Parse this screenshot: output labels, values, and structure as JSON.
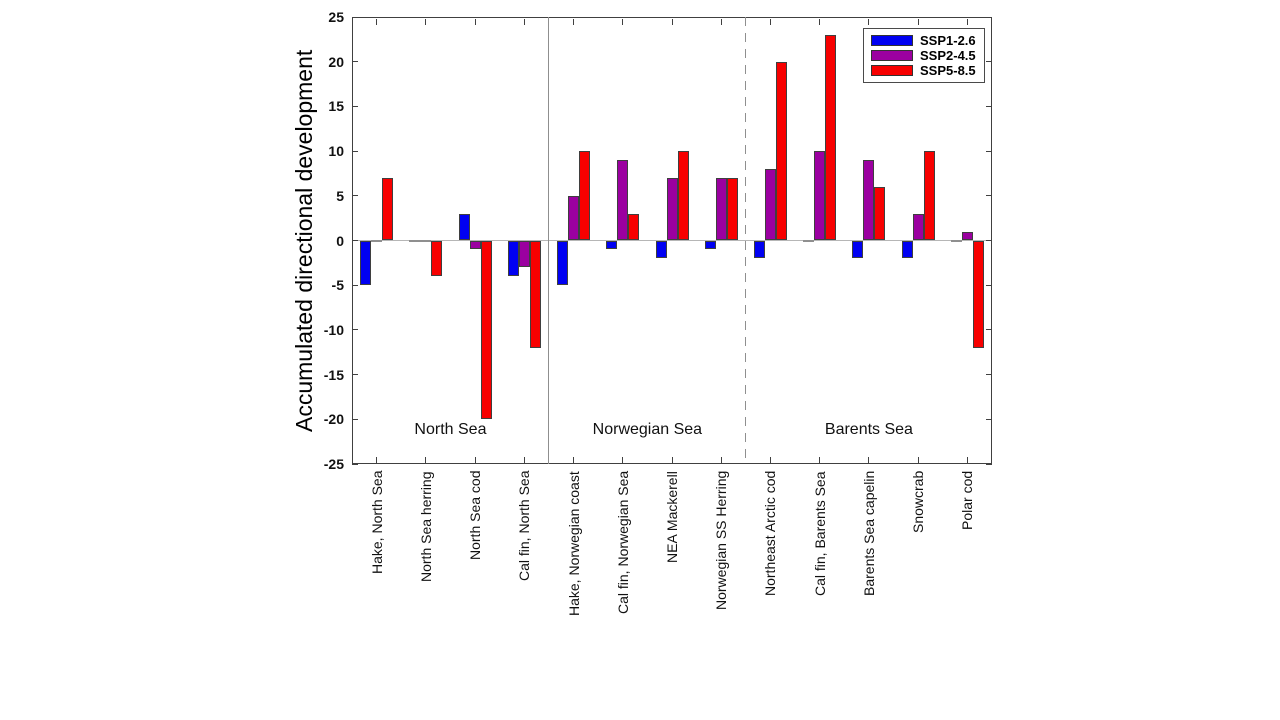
{
  "chart_data": {
    "type": "bar",
    "title": "",
    "xlabel": "",
    "ylabel": "Accumulated directional development",
    "ylim": [
      -25,
      25
    ],
    "yticks": [
      25,
      20,
      15,
      10,
      5,
      0,
      -5,
      -10,
      -15,
      -20,
      -25
    ],
    "grid": false,
    "legend_position": "top-right",
    "axis_color": "#404040",
    "zero_line_color": "#b6b6b6",
    "separator_color": "#8f8f8f",
    "categories": [
      "Hake, North Sea",
      "North Sea herring",
      "North Sea cod",
      "Cal fin, North Sea",
      "Hake, Norwegian coast",
      "Cal fin, Norwegian Sea",
      "NEA Mackerell",
      "Norwegian SS Herring",
      "Northeast Arctic cod",
      "Cal fin, Barents Sea",
      "Barents Sea capelin",
      "Snowcrab",
      "Polar cod"
    ],
    "series": [
      {
        "name": "SSP1-2.6",
        "color": "#0000f2",
        "values": [
          -5,
          0,
          3,
          -4,
          -5,
          -1,
          -2,
          -1,
          -2,
          0,
          -2,
          -2,
          0
        ]
      },
      {
        "name": "SSP2-4.5",
        "color": "#9b00a0",
        "values": [
          0,
          0,
          -1,
          -3,
          5,
          9,
          7,
          7,
          8,
          10,
          9,
          3,
          1
        ]
      },
      {
        "name": "SSP5-8.5",
        "color": "#f70000",
        "values": [
          7,
          -4,
          -20,
          -12,
          10,
          3,
          10,
          7,
          20,
          23,
          6,
          10,
          -12
        ]
      }
    ],
    "region_groups": [
      {
        "label": "North Sea",
        "from_category": 0,
        "to_category": 3
      },
      {
        "label": "Norwegian Sea",
        "from_category": 4,
        "to_category": 7
      },
      {
        "label": "Barents Sea",
        "from_category": 8,
        "to_category": 12
      }
    ],
    "separators": [
      {
        "after_category": 3,
        "style": "solid"
      },
      {
        "after_category": 7,
        "style": "dashed"
      }
    ]
  }
}
